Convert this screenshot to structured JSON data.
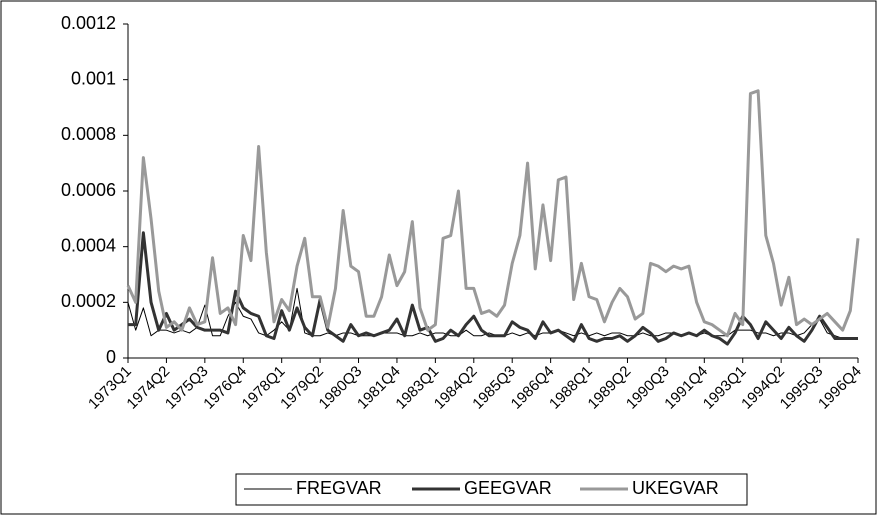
{
  "chart_data": {
    "type": "line",
    "categories": [
      "1973Q1",
      null,
      null,
      null,
      null,
      "1974Q2",
      null,
      null,
      null,
      null,
      "1975Q3",
      null,
      null,
      null,
      null,
      "1976Q4",
      null,
      null,
      null,
      null,
      "1978Q1",
      null,
      null,
      null,
      null,
      "1979Q2",
      null,
      null,
      null,
      null,
      "1980Q3",
      null,
      null,
      null,
      null,
      "1981Q4",
      null,
      null,
      null,
      null,
      "1983Q1",
      null,
      null,
      null,
      null,
      "1984Q2",
      null,
      null,
      null,
      null,
      "1985Q3",
      null,
      null,
      null,
      null,
      "1986Q4",
      null,
      null,
      null,
      null,
      "1988Q1",
      null,
      null,
      null,
      null,
      "1989Q2",
      null,
      null,
      null,
      null,
      "1990Q3",
      null,
      null,
      null,
      null,
      "1991Q4",
      null,
      null,
      null,
      null,
      "1993Q1",
      null,
      null,
      null,
      null,
      "1994Q2",
      null,
      null,
      null,
      null,
      "1995Q3",
      null,
      null,
      null,
      null,
      "1996Q4"
    ],
    "series": [
      {
        "name": "FREGVAR",
        "color": "#000000",
        "width": 1,
        "values": [
          0.0002,
          0.0001,
          0.00018,
          8e-05,
          0.0001,
          0.0001,
          9e-05,
          0.0001,
          9e-05,
          0.00011,
          0.00019,
          8e-05,
          8e-05,
          0.00015,
          0.0002,
          0.00015,
          0.00014,
          9e-05,
          8e-05,
          0.0001,
          0.00013,
          0.0001,
          0.00025,
          9e-05,
          8e-05,
          8e-05,
          9e-05,
          8e-05,
          9e-05,
          9e-05,
          8e-05,
          8e-05,
          8e-05,
          9e-05,
          9e-05,
          9e-05,
          8e-05,
          8e-05,
          9e-05,
          8e-05,
          9e-05,
          9e-05,
          8e-05,
          8e-05,
          0.0001,
          8e-05,
          8e-05,
          9e-05,
          8e-05,
          8e-05,
          9e-05,
          8e-05,
          9e-05,
          8e-05,
          9e-05,
          9e-05,
          0.0001,
          9e-05,
          8e-05,
          9e-05,
          8e-05,
          9e-05,
          8e-05,
          9e-05,
          9e-05,
          8e-05,
          8e-05,
          9e-05,
          8e-05,
          8e-05,
          9e-05,
          9e-05,
          8e-05,
          9e-05,
          8e-05,
          9e-05,
          8e-05,
          8e-05,
          8e-05,
          0.0001,
          0.0001,
          0.0001,
          9e-05,
          9e-05,
          8e-05,
          9e-05,
          9e-05,
          8e-05,
          9e-05,
          0.00012,
          0.00014,
          9e-05,
          8e-05,
          7e-05,
          7e-05,
          7e-05
        ]
      },
      {
        "name": "GEEGVAR",
        "color": "#333333",
        "width": 3,
        "values": [
          0.00012,
          0.00012,
          0.00045,
          0.0002,
          0.0001,
          0.00016,
          0.0001,
          0.00012,
          0.00014,
          0.00011,
          0.0001,
          0.0001,
          0.0001,
          9e-05,
          0.00024,
          0.00018,
          0.00016,
          0.00015,
          8e-05,
          7e-05,
          0.00017,
          0.0001,
          0.00018,
          0.00011,
          8e-05,
          0.00021,
          0.0001,
          8e-05,
          6e-05,
          0.00012,
          8e-05,
          9e-05,
          8e-05,
          9e-05,
          0.0001,
          0.00014,
          8e-05,
          0.00019,
          0.0001,
          0.00011,
          6e-05,
          7e-05,
          0.0001,
          8e-05,
          0.00012,
          0.00015,
          0.0001,
          8e-05,
          8e-05,
          8e-05,
          0.00013,
          0.00011,
          0.0001,
          7e-05,
          0.00013,
          9e-05,
          0.0001,
          8e-05,
          6e-05,
          0.00012,
          7e-05,
          6e-05,
          7e-05,
          7e-05,
          8e-05,
          6e-05,
          8e-05,
          0.00011,
          9e-05,
          6e-05,
          7e-05,
          9e-05,
          8e-05,
          9e-05,
          8e-05,
          0.0001,
          8e-05,
          7e-05,
          5e-05,
          9e-05,
          0.00015,
          0.00012,
          7e-05,
          0.00013,
          0.0001,
          7e-05,
          0.00011,
          8e-05,
          6e-05,
          0.0001,
          0.00015,
          0.00011,
          7e-05,
          7e-05,
          7e-05,
          7e-05
        ]
      },
      {
        "name": "UKEGVAR",
        "color": "#999999",
        "width": 3,
        "values": [
          0.00026,
          0.0002,
          0.00072,
          0.0005,
          0.00024,
          0.00011,
          0.00013,
          0.0001,
          0.00018,
          0.00012,
          0.00013,
          0.00036,
          0.00016,
          0.00018,
          0.00012,
          0.00044,
          0.00035,
          0.00076,
          0.00038,
          0.00013,
          0.00021,
          0.00017,
          0.00033,
          0.00043,
          0.00022,
          0.00022,
          0.00011,
          0.00025,
          0.00053,
          0.00033,
          0.00031,
          0.00015,
          0.00015,
          0.00022,
          0.00037,
          0.00026,
          0.00031,
          0.00049,
          0.00018,
          0.0001,
          0.00012,
          0.00043,
          0.00044,
          0.0006,
          0.00025,
          0.00025,
          0.00016,
          0.00017,
          0.00015,
          0.00019,
          0.00034,
          0.00044,
          0.0007,
          0.00032,
          0.00055,
          0.00035,
          0.00064,
          0.00065,
          0.00021,
          0.00034,
          0.00022,
          0.00021,
          0.00013,
          0.0002,
          0.00025,
          0.00022,
          0.00014,
          0.00016,
          0.00034,
          0.00033,
          0.00031,
          0.00033,
          0.00032,
          0.00033,
          0.0002,
          0.00013,
          0.00012,
          0.0001,
          8e-05,
          0.00016,
          0.00012,
          0.00095,
          0.00096,
          0.00044,
          0.00034,
          0.00019,
          0.00029,
          0.00012,
          0.00014,
          0.00012,
          0.00014,
          0.00016,
          0.00013,
          0.0001,
          0.00017,
          0.00043
        ]
      }
    ],
    "ylim": [
      0,
      0.0012
    ],
    "yticks": [
      0,
      0.0002,
      0.0004,
      0.0006,
      0.0008,
      0.001,
      0.0012
    ],
    "grid": false,
    "legend": "bottom"
  }
}
